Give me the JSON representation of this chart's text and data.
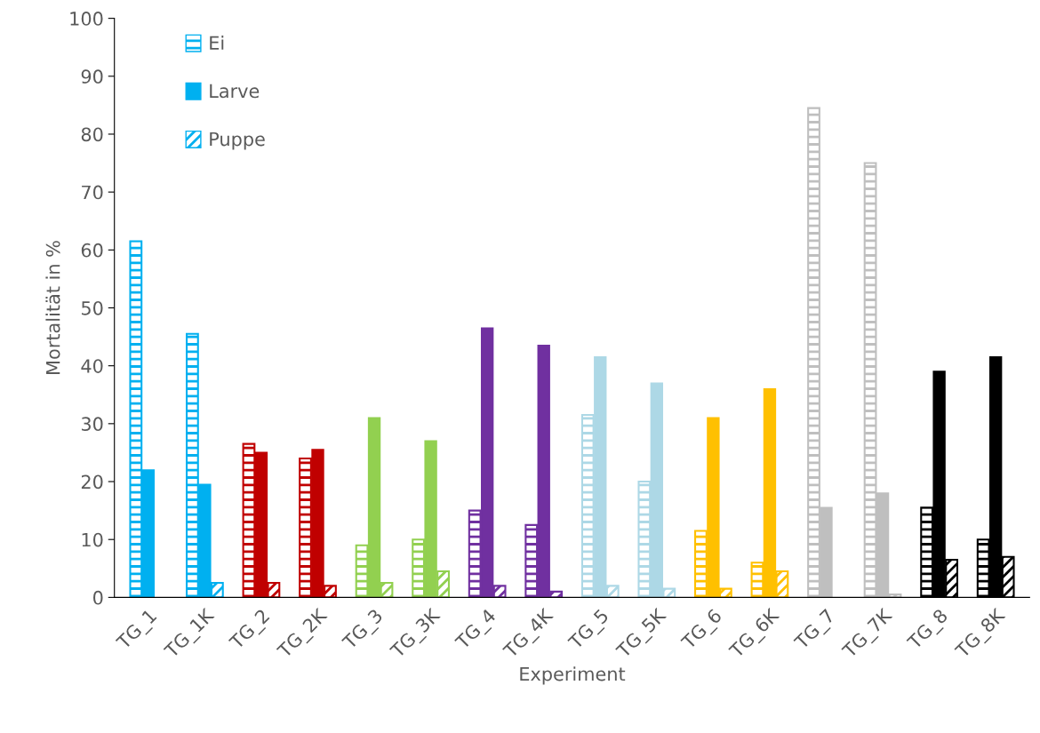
{
  "chart_data": {
    "type": "bar",
    "xlabel": "Experiment",
    "ylabel": "Mortalität in %",
    "categories": [
      "TG_1",
      "TG_1K",
      "TG_2",
      "TG_2K",
      "TG_3",
      "TG_3K",
      "TG_4",
      "TG_4K",
      "TG_5",
      "TG_5K",
      "TG_6",
      "TG_6K",
      "TG_7",
      "TG_7K",
      "TG_8",
      "TG_8K"
    ],
    "series": [
      {
        "name": "Ei",
        "color": "#00b0f0",
        "colors": [
          "#00b0f0",
          "#00b0f0",
          "#c00000",
          "#c00000",
          "#92d050",
          "#92d050",
          "#7030a0",
          "#7030a0",
          "#add8e6",
          "#add8e6",
          "#ffc000",
          "#ffc000",
          "#bfbfbf",
          "#bfbfbf",
          "#000000",
          "#000000"
        ],
        "values": [
          61.5,
          45.5,
          26.5,
          24,
          9,
          10,
          15,
          12.5,
          31.5,
          20,
          11.5,
          6,
          84.5,
          75,
          15.5,
          10
        ]
      },
      {
        "name": "Larve",
        "color": "#00b0f0",
        "colors": [
          "#00b0f0",
          "#00b0f0",
          "#c00000",
          "#c00000",
          "#92d050",
          "#92d050",
          "#7030a0",
          "#7030a0",
          "#add8e6",
          "#add8e6",
          "#ffc000",
          "#ffc000",
          "#bfbfbf",
          "#bfbfbf",
          "#000000",
          "#000000"
        ],
        "values": [
          22,
          19.5,
          25,
          25.5,
          31,
          27,
          46.5,
          43.5,
          41.5,
          37,
          31,
          36,
          15.5,
          18,
          39,
          41.5
        ]
      },
      {
        "name": "Puppe",
        "color": "#00b0f0",
        "colors": [
          "#00b0f0",
          "#00b0f0",
          "#c00000",
          "#c00000",
          "#92d050",
          "#92d050",
          "#7030a0",
          "#7030a0",
          "#add8e6",
          "#add8e6",
          "#ffc000",
          "#ffc000",
          "#bfbfbf",
          "#bfbfbf",
          "#000000",
          "#000000"
        ],
        "values": [
          null,
          2.5,
          2.5,
          2,
          2.5,
          4.5,
          2,
          1,
          2,
          1.5,
          1.5,
          4.5,
          null,
          0.5,
          6.5,
          7
        ]
      }
    ],
    "ylim": [
      0,
      100
    ],
    "yticks": [
      0,
      10,
      20,
      30,
      40,
      50,
      60,
      70,
      80,
      90,
      100
    ],
    "grid": false,
    "legend": "top left"
  }
}
